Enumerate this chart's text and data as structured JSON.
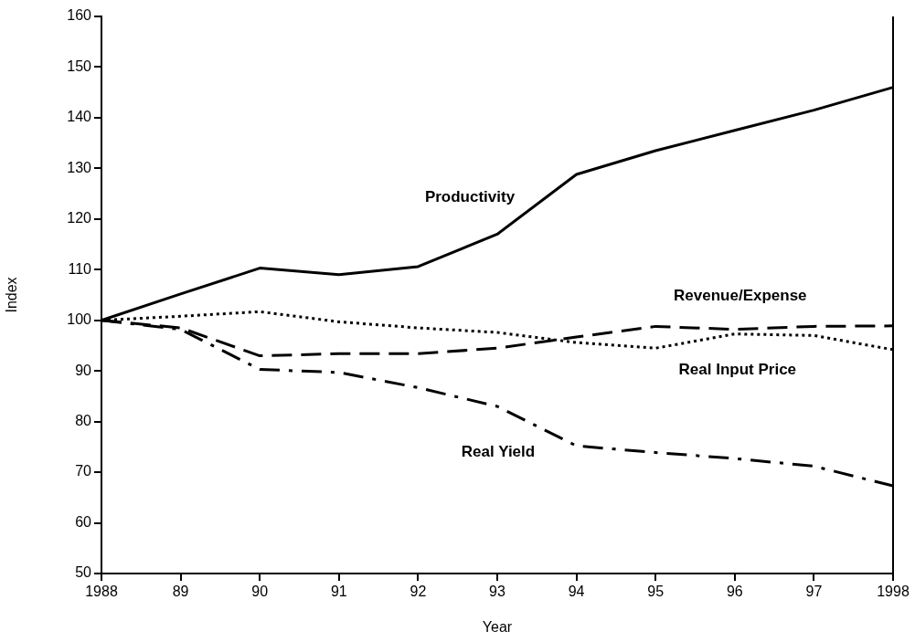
{
  "chart_data": {
    "type": "line",
    "xlabel": "Year",
    "ylabel": "Index",
    "categories": [
      "1988",
      "89",
      "90",
      "91",
      "92",
      "93",
      "94",
      "95",
      "96",
      "97",
      "1998"
    ],
    "series": [
      {
        "name": "Productivity",
        "color": "#000000",
        "line_style": "solid",
        "values": [
          100,
          105.2,
          110.3,
          109,
          110.6,
          117,
          128.8,
          133.5,
          137.5,
          141.5,
          146
        ]
      },
      {
        "name": "Revenue/Expense",
        "color": "#000000",
        "line_style": "dashed",
        "values": [
          100,
          98.5,
          93,
          93.4,
          93.4,
          94.5,
          96.7,
          98.8,
          98.2,
          98.8,
          98.9
        ]
      },
      {
        "name": "Real Input Price",
        "color": "#000000",
        "line_style": "dotted",
        "values": [
          100,
          100.8,
          101.7,
          99.7,
          98.5,
          97.6,
          95.6,
          94.5,
          97.3,
          97,
          94.2
        ]
      },
      {
        "name": "Real Yield",
        "color": "#000000",
        "line_style": "dashdot",
        "values": [
          100,
          98.2,
          90.3,
          89.7,
          86.7,
          83,
          75.2,
          73.9,
          72.7,
          71.2,
          67.3
        ]
      }
    ],
    "ylim": [
      50,
      160
    ],
    "yticks": [
      50,
      60,
      70,
      80,
      90,
      100,
      110,
      120,
      130,
      140,
      150,
      160
    ],
    "grid": false,
    "legend": false,
    "marker": "none"
  }
}
